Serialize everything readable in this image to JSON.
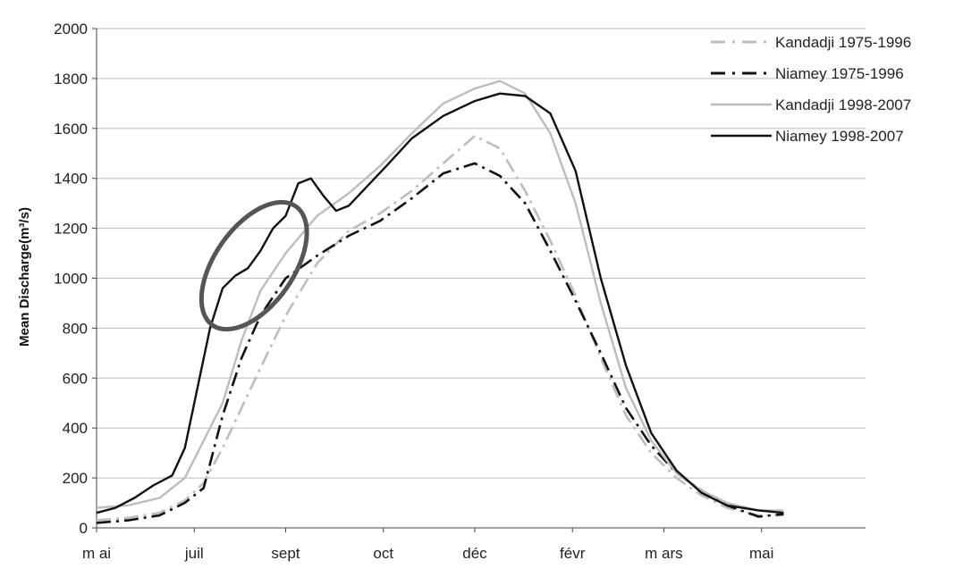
{
  "chart_data": {
    "type": "line",
    "ylabel": "Mean Discharge(m³/s)",
    "ylim": [
      0,
      2000
    ],
    "yticks": [
      0,
      200,
      400,
      600,
      800,
      1000,
      1200,
      1400,
      1600,
      1800,
      2000
    ],
    "xlim": [
      0,
      12.2
    ],
    "xticks": [
      {
        "x": 0,
        "label": "m ai"
      },
      {
        "x": 1.55,
        "label": "juil"
      },
      {
        "x": 3.0,
        "label": "sept"
      },
      {
        "x": 4.55,
        "label": "oct"
      },
      {
        "x": 6.0,
        "label": "déc"
      },
      {
        "x": 7.55,
        "label": "févr"
      },
      {
        "x": 9.0,
        "label": "m ars"
      },
      {
        "x": 10.55,
        "label": "mai"
      }
    ],
    "grid": "horizontal",
    "legend_position": "top-right",
    "annotations": [
      {
        "type": "ellipse",
        "cx": 2.5,
        "cy": 1050,
        "rx": 1.6,
        "ry": 350,
        "angle": -55,
        "color": "#555555"
      }
    ],
    "series": [
      {
        "name": "Kandadji 1975-1996",
        "color": "#bdbdbd",
        "dash": "dashdot",
        "x": [
          0.0,
          0.5,
          1.0,
          1.4,
          1.7,
          2.0,
          2.3,
          2.6,
          3.0,
          3.5,
          4.0,
          4.5,
          5.0,
          5.5,
          6.0,
          6.4,
          6.8,
          7.2,
          7.6,
          8.0,
          8.4,
          8.8,
          9.2,
          9.6,
          10.0,
          10.5,
          10.9
        ],
        "values": [
          30,
          40,
          60,
          110,
          180,
          320,
          480,
          640,
          850,
          1060,
          1190,
          1260,
          1350,
          1460,
          1570,
          1520,
          1350,
          1150,
          930,
          680,
          450,
          300,
          200,
          130,
          80,
          50,
          50
        ]
      },
      {
        "name": "Niamey 1975-1996",
        "color": "#111111",
        "dash": "dashdot",
        "x": [
          0.0,
          0.5,
          1.0,
          1.4,
          1.7,
          2.0,
          2.3,
          2.6,
          3.0,
          3.5,
          4.0,
          4.5,
          5.0,
          5.5,
          6.0,
          6.4,
          6.8,
          7.2,
          7.6,
          8.0,
          8.4,
          8.8,
          9.2,
          9.6,
          10.0,
          10.5,
          10.9
        ],
        "values": [
          20,
          30,
          50,
          100,
          160,
          450,
          680,
          850,
          1000,
          1090,
          1170,
          1230,
          1320,
          1420,
          1460,
          1410,
          1300,
          1110,
          910,
          700,
          480,
          330,
          220,
          150,
          90,
          45,
          55
        ]
      },
      {
        "name": "Kandadji 1998-2007",
        "color": "#bdbdbd",
        "dash": "solid",
        "x": [
          0.0,
          0.5,
          1.0,
          1.4,
          1.7,
          2.0,
          2.3,
          2.6,
          3.0,
          3.5,
          4.0,
          4.5,
          5.0,
          5.5,
          6.0,
          6.4,
          6.8,
          7.2,
          7.6,
          8.0,
          8.4,
          8.8,
          9.2,
          9.6,
          10.0,
          10.5,
          10.9
        ],
        "values": [
          80,
          90,
          120,
          200,
          350,
          500,
          750,
          950,
          1100,
          1250,
          1340,
          1450,
          1580,
          1700,
          1760,
          1790,
          1740,
          1580,
          1300,
          900,
          560,
          350,
          220,
          150,
          100,
          70,
          70
        ]
      },
      {
        "name": "Niamey 1998-2007",
        "color": "#111111",
        "dash": "solid",
        "x": [
          0.0,
          0.3,
          0.6,
          0.9,
          1.2,
          1.4,
          1.6,
          1.8,
          2.0,
          2.2,
          2.4,
          2.6,
          2.8,
          3.0,
          3.2,
          3.4,
          3.6,
          3.8,
          4.0,
          4.3,
          4.6,
          5.0,
          5.5,
          6.0,
          6.4,
          6.8,
          7.2,
          7.6,
          8.0,
          8.4,
          8.8,
          9.2,
          9.6,
          10.0,
          10.5,
          10.9
        ],
        "values": [
          60,
          80,
          120,
          170,
          210,
          320,
          560,
          800,
          960,
          1010,
          1040,
          1110,
          1200,
          1250,
          1380,
          1400,
          1330,
          1270,
          1290,
          1370,
          1450,
          1560,
          1650,
          1710,
          1740,
          1730,
          1660,
          1430,
          1000,
          650,
          380,
          230,
          140,
          90,
          70,
          60
        ]
      }
    ]
  }
}
